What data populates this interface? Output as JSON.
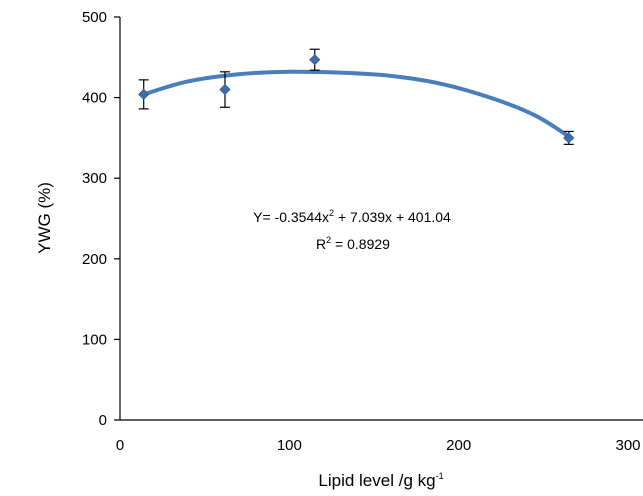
{
  "chart_data": {
    "type": "scatter",
    "xlabel": "Lipid level /g kg",
    "xlabel_sup": "-1",
    "ylabel": "YWG (%)",
    "xlim": [
      0,
      300
    ],
    "ylim": [
      0,
      500
    ],
    "x_ticks": [
      {
        "value": 0,
        "label": "0"
      },
      {
        "value": 100,
        "label": "100"
      },
      {
        "value": 200,
        "label": "200"
      },
      {
        "value": 300,
        "label": "300"
      }
    ],
    "y_ticks": [
      {
        "value": 0,
        "label": "0"
      },
      {
        "value": 100,
        "label": "100"
      },
      {
        "value": 200,
        "label": "200"
      },
      {
        "value": 300,
        "label": "300"
      },
      {
        "value": 400,
        "label": "400"
      },
      {
        "value": 500,
        "label": "500"
      }
    ],
    "grid": false,
    "points": [
      {
        "x": 14,
        "y": 404,
        "error": 18
      },
      {
        "x": 62,
        "y": 410,
        "error": 22
      },
      {
        "x": 115,
        "y": 447,
        "error": 13
      },
      {
        "x": 265,
        "y": 350,
        "error": 8
      }
    ],
    "fit": {
      "type": "quadratic",
      "x_range": [
        14,
        265
      ],
      "curve_points": [
        [
          14,
          404
        ],
        [
          40,
          420
        ],
        [
          70,
          429
        ],
        [
          100,
          432
        ],
        [
          130,
          431
        ],
        [
          160,
          427
        ],
        [
          190,
          417
        ],
        [
          220,
          399
        ],
        [
          245,
          378
        ],
        [
          265,
          352
        ]
      ],
      "equation": {
        "prefix": "Y= -0.3544x",
        "sup": "2",
        "suffix": " + 7.039x + 401.04"
      },
      "r2": {
        "prefix": "R",
        "sup": "2",
        "suffix": " = 0.8929"
      }
    },
    "colors": {
      "curve": "#4a7ebb",
      "marker": "#3f6ea8",
      "axis": "#000000",
      "error_bar": "#000000"
    }
  }
}
